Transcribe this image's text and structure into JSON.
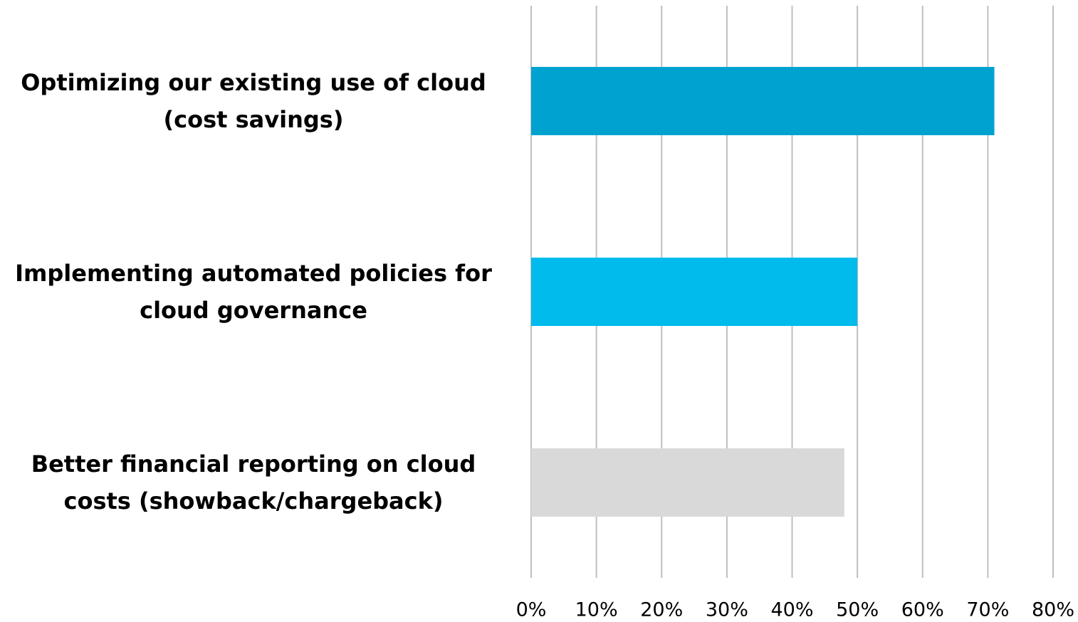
{
  "chart_data": {
    "type": "barh",
    "categories": [
      "Optimizing our existing use of cloud (cost savings)",
      "Implementing automated policies for cloud governance",
      "Better financial reporting on cloud costs (showback/chargeback)"
    ],
    "values": [
      71,
      50,
      48
    ],
    "colors": [
      "#00a3d0",
      "#00bbeb",
      "#d9d9d9"
    ],
    "xlim": [
      0,
      80
    ],
    "xticks": [
      {
        "value": 0,
        "label": "0%"
      },
      {
        "value": 10,
        "label": "10%"
      },
      {
        "value": 20,
        "label": "20%"
      },
      {
        "value": 30,
        "label": "30%"
      },
      {
        "value": 40,
        "label": "40%"
      },
      {
        "value": 50,
        "label": "50%"
      },
      {
        "value": 60,
        "label": "60%"
      },
      {
        "value": 70,
        "label": "70%"
      },
      {
        "value": 80,
        "label": "80%"
      }
    ],
    "grid": true
  }
}
